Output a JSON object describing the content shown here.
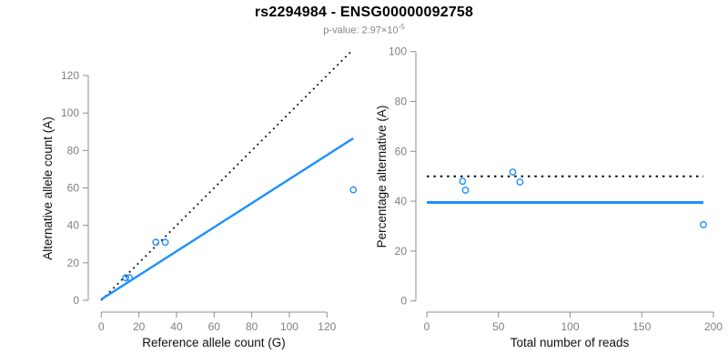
{
  "header": {
    "title": "rs2294984 - ENSG00000092758",
    "pvalue_label": "p-value: 2.97×10",
    "pvalue_exponent": "-5"
  },
  "colors": {
    "accent_blue": "#1E90FF",
    "dotted_black": "#000000",
    "axis_gray": "#8C8C8C",
    "tick_label_gray": "#808080",
    "label_black": "#111111"
  },
  "chart_data": [
    {
      "type": "scatter",
      "xlabel": "Reference allele count (G)",
      "ylabel": "Alternative allele count (A)",
      "xlim": [
        0,
        135
      ],
      "ylim": [
        0,
        135
      ],
      "xticks": [
        0,
        20,
        40,
        60,
        80,
        100,
        120
      ],
      "yticks": [
        0,
        20,
        40,
        60,
        80,
        100,
        120
      ],
      "grid": false,
      "legend": null,
      "points": [
        {
          "x": 13,
          "y": 12
        },
        {
          "x": 15,
          "y": 12
        },
        {
          "x": 29,
          "y": 31
        },
        {
          "x": 34,
          "y": 31
        },
        {
          "x": 134,
          "y": 59
        }
      ],
      "lines": [
        {
          "name": "identity-line",
          "style": "dotted",
          "color": "#000000",
          "width": 1.8,
          "from": [
            0,
            0
          ],
          "to": [
            133.5,
            133.5
          ]
        },
        {
          "name": "fit-line",
          "style": "solid",
          "color": "#1E90FF",
          "width": 2.4,
          "from": [
            0,
            0.5
          ],
          "to": [
            134,
            86.5
          ]
        }
      ]
    },
    {
      "type": "scatter",
      "xlabel": "Total number of reads",
      "ylabel": "Percentage alternative (A)",
      "xlim": [
        0,
        200
      ],
      "ylim": [
        0,
        100
      ],
      "xticks": [
        0,
        50,
        100,
        150,
        200
      ],
      "yticks": [
        0,
        20,
        40,
        60,
        80,
        100
      ],
      "grid": false,
      "legend": null,
      "points": [
        {
          "x": 25,
          "y": 48.0
        },
        {
          "x": 27,
          "y": 44.4
        },
        {
          "x": 60,
          "y": 51.7
        },
        {
          "x": 65,
          "y": 47.7
        },
        {
          "x": 193,
          "y": 30.6
        }
      ],
      "lines": [
        {
          "name": "fifty-percent-line",
          "style": "dotted",
          "color": "#000000",
          "width": 2,
          "from": [
            0,
            50
          ],
          "to": [
            193,
            50
          ]
        },
        {
          "name": "fit-line",
          "style": "solid",
          "color": "#1E90FF",
          "width": 3,
          "from": [
            0,
            39.5
          ],
          "to": [
            193,
            39.5
          ]
        }
      ]
    }
  ]
}
